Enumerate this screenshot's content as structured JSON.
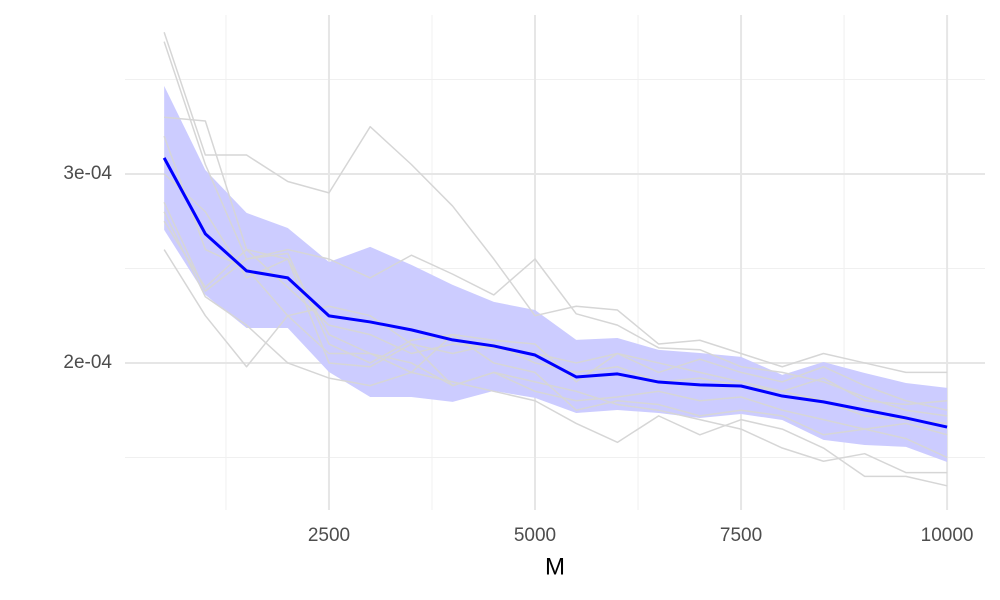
{
  "chart_data": {
    "type": "line",
    "xlabel": "M",
    "x": [
      500,
      1000,
      1500,
      2000,
      2500,
      3000,
      3500,
      4000,
      4500,
      5000,
      5500,
      6000,
      6500,
      7000,
      7500,
      8000,
      8500,
      9000,
      9500,
      10000
    ],
    "xlim": [
      25,
      10460
    ],
    "ylim": [
      0.0001222,
      0.0003841
    ],
    "xticks": [
      2500,
      5000,
      7500,
      10000
    ],
    "yticks": [
      {
        "value": 0.0002,
        "label": "2e-04"
      },
      {
        "value": 0.0003,
        "label": "3e-04"
      }
    ],
    "xminor": [
      1250,
      3750,
      6250,
      8750
    ],
    "yminor": [
      0.00015,
      0.00025,
      0.00035
    ],
    "grid": true,
    "band": {
      "color": "#ccccff",
      "upper": [
        0.0003466,
        0.0003021,
        0.0002794,
        0.0002714,
        0.0002534,
        0.0002614,
        0.0002519,
        0.0002413,
        0.0002323,
        0.000228,
        0.0002122,
        0.0002132,
        0.0002069,
        0.0002053,
        0.0002032,
        0.0001937,
        0.0002005,
        0.0001947,
        0.0001894,
        0.0001868
      ],
      "lower": [
        0.0002704,
        0.000236,
        0.0002185,
        0.0002185,
        0.0001952,
        0.000182,
        0.000182,
        0.0001794,
        0.0001852,
        0.0001815,
        0.0001735,
        0.0001751,
        0.0001735,
        0.0001709,
        0.000173,
        0.0001698,
        0.0001593,
        0.0001566,
        0.0001556,
        0.0001476
      ]
    },
    "series": [
      {
        "color": "#d6d6d6",
        "values": [
          0.000375,
          0.00031,
          0.00031,
          0.000296,
          0.00029,
          0.000325,
          0.000305,
          0.000283,
          0.000255,
          0.000225,
          0.00023,
          0.000228,
          0.00021,
          0.000212,
          0.000205,
          0.000198,
          0.000205,
          0.0002,
          0.000195,
          0.000195
        ]
      },
      {
        "color": "#d6d6d6",
        "values": [
          0.00037,
          0.000305,
          0.000255,
          0.00026,
          0.000255,
          0.000245,
          0.000257,
          0.000247,
          0.000236,
          0.000255,
          0.000226,
          0.00022,
          0.000208,
          0.000207,
          0.000198,
          0.000195,
          0.00019,
          0.000182,
          0.000175,
          0.000172
        ]
      },
      {
        "color": "#d6d6d6",
        "values": [
          0.00033,
          0.000328,
          0.00026,
          0.00024,
          0.00022,
          0.000215,
          0.000205,
          0.00021,
          0.000208,
          0.000205,
          0.0002,
          0.000205,
          0.0002,
          0.000195,
          0.00019,
          0.000185,
          0.000192,
          0.00018,
          0.000178,
          0.00018
        ]
      },
      {
        "color": "#d6d6d6",
        "values": [
          0.00026,
          0.000225,
          0.000198,
          0.000225,
          0.000205,
          0.000205,
          0.0002,
          0.000188,
          0.000195,
          0.00019,
          0.000185,
          0.000178,
          0.000175,
          0.00017,
          0.000165,
          0.000155,
          0.000148,
          0.000152,
          0.000142,
          0.000142
        ]
      },
      {
        "color": "#d6d6d6",
        "values": [
          0.00028,
          0.000235,
          0.00022,
          0.0002,
          0.000192,
          0.000188,
          0.000195,
          0.00019,
          0.000185,
          0.00018,
          0.000168,
          0.000158,
          0.000172,
          0.000162,
          0.00017,
          0.000165,
          0.000155,
          0.00014,
          0.00014,
          0.000135
        ]
      },
      {
        "color": "#d6d6d6",
        "values": [
          0.000285,
          0.000238,
          0.000255,
          0.000258,
          0.00021,
          0.0002,
          0.000212,
          0.000215,
          0.0002,
          0.000195,
          0.000175,
          0.00018,
          0.000178,
          0.000172,
          0.000175,
          0.000172,
          0.000162,
          0.000165,
          0.00016,
          0.00015
        ]
      },
      {
        "color": "#d6d6d6",
        "values": [
          0.00032,
          0.00026,
          0.00025,
          0.000225,
          0.00023,
          0.000225,
          0.00021,
          0.000205,
          0.00021,
          0.0002,
          0.000195,
          0.000198,
          0.00019,
          0.000192,
          0.000188,
          0.000185,
          0.00018,
          0.000172,
          0.00017,
          0.000168
        ]
      },
      {
        "color": "#d6d6d6",
        "values": [
          0.0003,
          0.00028,
          0.000245,
          0.000255,
          0.0002,
          0.000198,
          0.00021,
          0.000188,
          0.000195,
          0.000185,
          0.00018,
          0.000182,
          0.000185,
          0.00018,
          0.000182,
          0.000175,
          0.00017,
          0.000165,
          0.000168,
          0.000162
        ]
      },
      {
        "color": "#d6d6d6",
        "values": [
          0.000275,
          0.00024,
          0.00026,
          0.000255,
          0.000215,
          0.000205,
          0.000195,
          0.000215,
          0.000212,
          0.00021,
          0.00019,
          0.000205,
          0.000195,
          0.000202,
          0.000195,
          0.00019,
          0.000198,
          0.000188,
          0.00018,
          0.000175
        ]
      },
      {
        "color": "#0000ff",
        "width": 3,
        "values": [
          0.0003085,
          0.0002683,
          0.0002487,
          0.000245,
          0.0002249,
          0.0002217,
          0.0002175,
          0.0002122,
          0.000209,
          0.0002042,
          0.0001926,
          0.0001942,
          0.0001899,
          0.0001884,
          0.0001878,
          0.0001825,
          0.0001794,
          0.0001751,
          0.0001709,
          0.0001661
        ]
      }
    ]
  }
}
